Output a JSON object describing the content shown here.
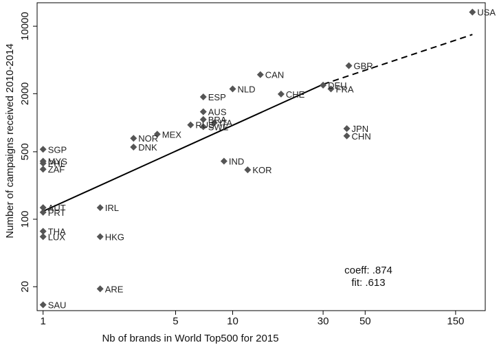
{
  "chart_data": {
    "type": "scatter",
    "title": "",
    "xlabel": "Nb of brands in World Top500 for 2015",
    "ylabel": "Number of campaigns received 2010-2014",
    "x_scale": "log",
    "y_scale": "log",
    "xlim": [
      0.93,
      215
    ],
    "ylim": [
      11.3,
      17500
    ],
    "x_ticks": [
      1,
      5,
      10,
      30,
      50,
      150
    ],
    "y_ticks": [
      20,
      100,
      500,
      2000,
      10000
    ],
    "grid": false,
    "legend": "none",
    "marker_color": "#555555",
    "points": [
      {
        "label": "USA",
        "x": 184,
        "y": 14000
      },
      {
        "label": "GBR",
        "x": 41,
        "y": 3900
      },
      {
        "label": "CAN",
        "x": 14,
        "y": 3150
      },
      {
        "label": "DEU",
        "x": 30,
        "y": 2450
      },
      {
        "label": "NLD",
        "x": 10,
        "y": 2240
      },
      {
        "label": "FRA",
        "x": 33,
        "y": 2240
      },
      {
        "label": "CHE",
        "x": 18,
        "y": 1980
      },
      {
        "label": "ESP",
        "x": 7,
        "y": 1850
      },
      {
        "label": "AUS",
        "x": 7,
        "y": 1300
      },
      {
        "label": "BRA",
        "x": 7,
        "y": 1080
      },
      {
        "label": "ITA",
        "x": 8,
        "y": 1000
      },
      {
        "label": "RUS",
        "x": 6,
        "y": 950
      },
      {
        "label": "SWE",
        "x": 7,
        "y": 910
      },
      {
        "label": "MEX",
        "x": 4,
        "y": 760
      },
      {
        "label": "NOR",
        "x": 3,
        "y": 690
      },
      {
        "label": "DNK",
        "x": 3,
        "y": 560
      },
      {
        "label": "JPN",
        "x": 40,
        "y": 870
      },
      {
        "label": "CHN",
        "x": 40,
        "y": 730
      },
      {
        "label": "IND",
        "x": 9,
        "y": 400
      },
      {
        "label": "KOR",
        "x": 12,
        "y": 325
      },
      {
        "label": "SGP",
        "x": 1,
        "y": 530
      },
      {
        "label": "MYS",
        "x": 1,
        "y": 400
      },
      {
        "label": "PHL",
        "x": 1,
        "y": 380
      },
      {
        "label": "ZAF",
        "x": 1,
        "y": 330
      },
      {
        "label": "AUT",
        "x": 1,
        "y": 132
      },
      {
        "label": "IRL",
        "x": 2,
        "y": 132
      },
      {
        "label": "PRT",
        "x": 1,
        "y": 118
      },
      {
        "label": "THA",
        "x": 1,
        "y": 75
      },
      {
        "label": "LUX",
        "x": 1,
        "y": 66
      },
      {
        "label": "HKG",
        "x": 2,
        "y": 66
      },
      {
        "label": "ARE",
        "x": 2,
        "y": 19
      },
      {
        "label": "SAU",
        "x": 1,
        "y": 13
      }
    ],
    "fit_line": {
      "solid": {
        "x_start": 1,
        "y_start": 121,
        "x_end": 30,
        "y_end": 2500
      },
      "dashed": {
        "x_start": 30,
        "y_end": 8200,
        "x_end": 184,
        "y_start": 2500
      }
    },
    "annotations": [
      "coeff: .874",
      "fit: .613"
    ]
  }
}
